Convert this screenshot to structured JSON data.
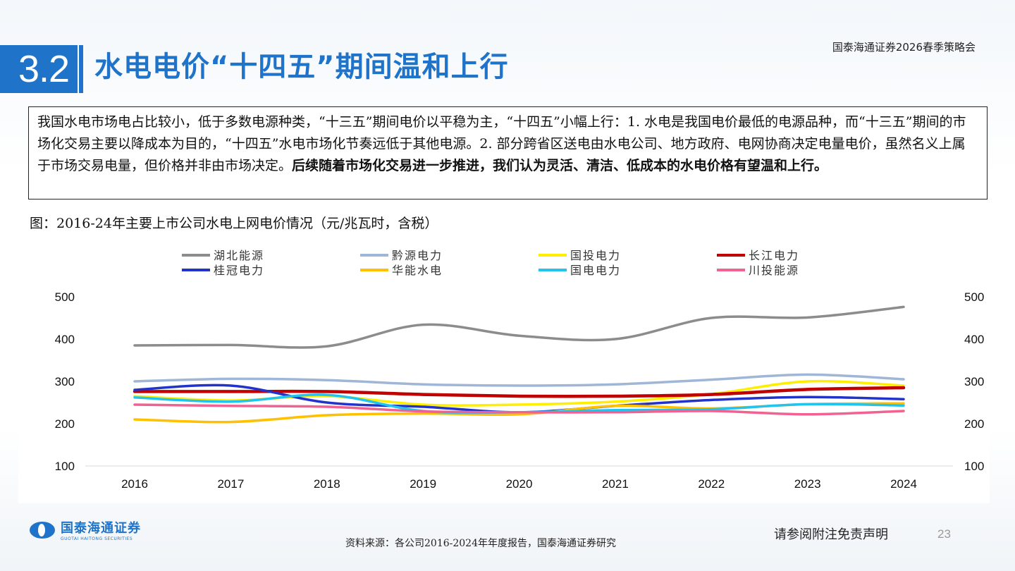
{
  "header": {
    "section_number": "3.2",
    "title": "水电电价“十四五”期间温和上行",
    "brand_line": "国泰海通证券2026春季策略会"
  },
  "summary": {
    "part1": "我国水电市场电占比较小，低于多数电源种类，“十三五”期间电价以平稳为主，“十四五”小幅上行：1. 水电是我国电价最低的电源品种，而“十三五”期间的市场化交易主要以降成本为目的，“十四五”水电市场化节奏远低于其他电源。2. 部分跨省区送电由水电公司、地方政府、电网协商决定电量电价，虽然名义上属于市场交易电量，但价格并非由市场决定。",
    "conclusion": "后续随着市场化交易进一步推进，我们认为灵活、清洁、低成本的水电价格有望温和上行。"
  },
  "figure": {
    "caption": "图：2016-24年主要上市公司水电上网电价情况（元/兆瓦时，含税）"
  },
  "chart_data": {
    "type": "line",
    "x": [
      "2016",
      "2017",
      "2018",
      "2019",
      "2020",
      "2021",
      "2022",
      "2023",
      "2024"
    ],
    "ylim": [
      100,
      500
    ],
    "yticks": [
      "100",
      "200",
      "300",
      "400",
      "500"
    ],
    "y_axis_both_sides": true,
    "smooth": true,
    "grid": false,
    "legend_position": "top",
    "series": [
      {
        "name": "湖北能源",
        "color": "#8c8c8c",
        "values": [
          385,
          386,
          383,
          434,
          408,
          400,
          450,
          451,
          476
        ]
      },
      {
        "name": "黔源电力",
        "color": "#9fb6d6",
        "values": [
          300,
          306,
          303,
          293,
          290,
          293,
          304,
          316,
          305
        ]
      },
      {
        "name": "国投电力",
        "color": "#ffee00",
        "values": [
          265,
          255,
          265,
          245,
          245,
          252,
          270,
          300,
          290
        ]
      },
      {
        "name": "长江电力",
        "color": "#c00000",
        "values": [
          276,
          276,
          276,
          269,
          265,
          265,
          269,
          281,
          285
        ]
      },
      {
        "name": "桂冠电力",
        "color": "#2233cc",
        "values": [
          280,
          290,
          250,
          240,
          227,
          242,
          256,
          263,
          258
        ]
      },
      {
        "name": "华能水电",
        "color": "#ffc000",
        "values": [
          210,
          204,
          220,
          224,
          222,
          242,
          236,
          246,
          248
        ]
      },
      {
        "name": "国电电力",
        "color": "#22c4ee",
        "values": [
          262,
          252,
          268,
          230,
          227,
          232,
          234,
          246,
          243
        ]
      },
      {
        "name": "川投能源",
        "color": "#f06292",
        "values": [
          245,
          242,
          240,
          229,
          227,
          227,
          230,
          222,
          230
        ]
      }
    ]
  },
  "footer": {
    "logo_cn": "国泰海通证券",
    "logo_en": "GUOTAI HAITONG SECURITIES",
    "source": "资料来源：各公司2016-2024年年度报告，国泰海通证券研究",
    "disclaimer": "请参阅附注免责声明",
    "page_number": "23"
  }
}
